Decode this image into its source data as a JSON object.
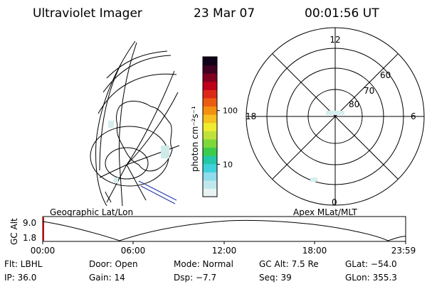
{
  "header": {
    "instrument": "Ultraviolet Imager",
    "date": "23 Mar 07",
    "time": "00:01:56 UT"
  },
  "geo_panel": {
    "label": "Geographic Lat/Lon"
  },
  "colorbar": {
    "unit_label": "photon cm⁻²s⁻¹",
    "tick_labels": [
      "100",
      "10"
    ],
    "tick_values": [
      100,
      10
    ],
    "range": [
      2.5,
      1000
    ],
    "scale": "log",
    "colors": [
      "#e8f4f4",
      "#bfe8ee",
      "#8fdcec",
      "#3fd2dc",
      "#22c8a8",
      "#3ccc4c",
      "#7ed83a",
      "#bfe23a",
      "#f0ec30",
      "#f6c020",
      "#f49010",
      "#ec5c10",
      "#dc2818",
      "#c00018",
      "#800020",
      "#400020",
      "#100018"
    ]
  },
  "polar_panel": {
    "label": "Apex MLat/MLT",
    "mlt_labels": [
      "12",
      "18",
      "6",
      "0"
    ],
    "lat_labels": [
      "60",
      "70",
      "80"
    ]
  },
  "altitude_plot": {
    "ylabel": "GC Alt",
    "ytick_labels": [
      "9.0",
      "1.8"
    ],
    "yrange": [
      1.8,
      9.0
    ],
    "xtick_labels": [
      "00:00",
      "06:00",
      "12:00",
      "18:00",
      "23:59"
    ]
  },
  "status": {
    "row1": [
      "Flt: LBHL",
      "Door: Open",
      "Mode: Normal",
      "GC Alt: 7.5 Re",
      "GLat: −54.0"
    ],
    "row2": [
      "IP: 36.0",
      "Gain: 14",
      "Dsp:  −7.7",
      "Seq: 39",
      "GLon: 355.3"
    ]
  }
}
